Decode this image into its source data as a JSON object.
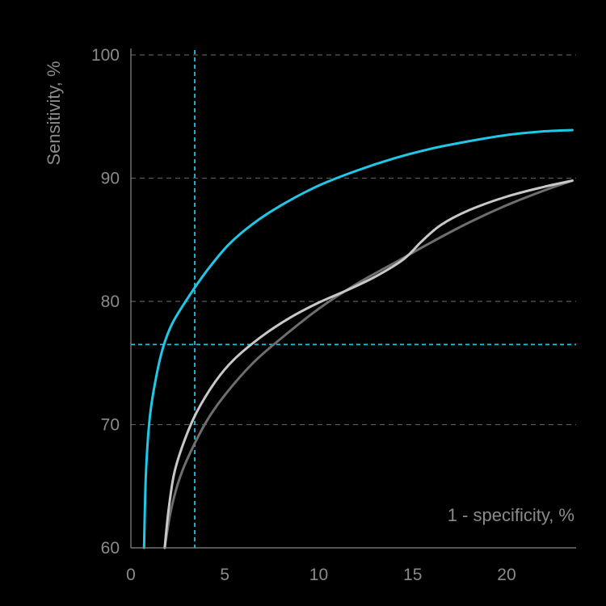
{
  "chart_data": {
    "type": "line",
    "xlabel": "1 - specificity, %",
    "ylabel": "Sensitivity, %",
    "xlim": [
      0,
      23.7
    ],
    "ylim": [
      60,
      100
    ],
    "x_ticks": [
      0,
      5,
      10,
      15,
      20
    ],
    "y_ticks": [
      60,
      70,
      80,
      90,
      100
    ],
    "grid": "horizontal dashed",
    "reference_lines": [
      {
        "orientation": "vertical",
        "value": 3.4,
        "color": "#19c3e6"
      },
      {
        "orientation": "horizontal",
        "value": 76.5,
        "color": "#19c3e6"
      }
    ],
    "series": [
      {
        "color": "#1ec8e6",
        "x": [
          0.7,
          0.8,
          1.0,
          1.3,
          1.7,
          2.2,
          3.0,
          4.0,
          5.2,
          6.5,
          8.0,
          10.0,
          12.0,
          14.0,
          16.0,
          18.0,
          20.0,
          22.0,
          23.5
        ],
        "y": [
          60,
          66,
          70.5,
          73.5,
          76.2,
          78.2,
          80.2,
          82.4,
          84.6,
          86.3,
          87.8,
          89.4,
          90.6,
          91.6,
          92.4,
          93.0,
          93.5,
          93.8,
          93.9
        ]
      },
      {
        "color": "#c8c8c8",
        "x": [
          1.8,
          2.0,
          2.3,
          2.8,
          3.5,
          4.5,
          5.5,
          7.0,
          8.5,
          10.0,
          11.5,
          13.0,
          14.5,
          15.5,
          16.5,
          18.0,
          20.0,
          22.0,
          23.5
        ],
        "y": [
          60,
          63,
          66,
          68.5,
          71,
          73.5,
          75.3,
          77.2,
          78.7,
          79.9,
          80.9,
          82.0,
          83.4,
          84.9,
          86.2,
          87.4,
          88.5,
          89.3,
          89.8
        ]
      },
      {
        "color": "#6e6e6e",
        "x": [
          1.8,
          2.1,
          2.5,
          3.0,
          4.0,
          5.0,
          6.5,
          8.0,
          10.0,
          12.0,
          14.0,
          16.0,
          18.0,
          20.0,
          22.0,
          23.5
        ],
        "y": [
          60,
          62.8,
          65.2,
          67.2,
          70.2,
          72.4,
          75.0,
          77.0,
          79.4,
          81.4,
          83.1,
          84.8,
          86.4,
          87.8,
          89.0,
          89.8
        ]
      }
    ]
  }
}
